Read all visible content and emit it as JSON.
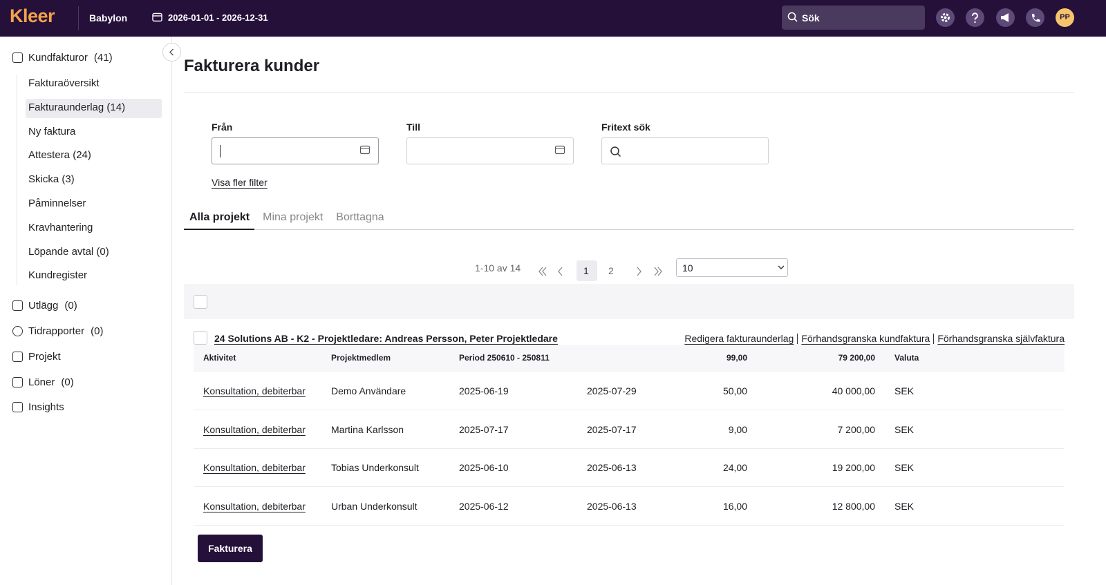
{
  "topbar": {
    "logo": "Kleer",
    "company": "Babylon",
    "period": "2026-01-01 - 2026-12-31",
    "search": "Sök",
    "avatar": "PP"
  },
  "sidebar": {
    "main": [
      {
        "label": "Kundfakturor",
        "count": "(41)"
      },
      {
        "label": "Utlägg",
        "count": "(0)"
      },
      {
        "label": "Tidrapporter",
        "count": "(0)"
      },
      {
        "label": "Projekt"
      },
      {
        "label": "Löner",
        "count": "(0)"
      },
      {
        "label": "Insights"
      }
    ],
    "submenu": [
      "Fakturaöversikt",
      "Fakturaunderlag (14)",
      "Ny faktura",
      "Attestera (24)",
      "Skicka (3)",
      "Påminnelser",
      "Kravhantering",
      "Löpande avtal (0)",
      "Kundregister"
    ]
  },
  "page": {
    "title": "Fakturera kunder",
    "filters": [
      "Från",
      "Till",
      "Fritext sök"
    ],
    "more_filters": "Visa fler filter",
    "tabs": [
      "Alla projekt",
      "Mina projekt",
      "Borttagna"
    ],
    "pagination": {
      "summary": "1-10 av 14",
      "pages": [
        "1",
        "2"
      ],
      "page_size": "10"
    },
    "group": {
      "title": "24 Solutions AB - K2 - Projektledare: Andreas Persson, Peter Projektledare",
      "actions": [
        "Redigera fakturaunderlag",
        "Förhandsgranska kundfaktura",
        "Förhandsgranska självfaktura"
      ],
      "columns": [
        "Aktivitet",
        "Projektmedlem",
        "Period 250610 - 250811",
        "99,00",
        "79 200,00",
        "Valuta"
      ],
      "rows": [
        [
          "Konsultation, debiterbar",
          "Demo Användare",
          "2025-06-19",
          "2025-07-29",
          "50,00",
          "40 000,00",
          "SEK"
        ],
        [
          "Konsultation, debiterbar",
          "Martina Karlsson",
          "2025-07-17",
          "2025-07-17",
          "9,00",
          "7 200,00",
          "SEK"
        ],
        [
          "Konsultation, debiterbar",
          "Tobias Underkonsult",
          "2025-06-10",
          "2025-06-13",
          "24,00",
          "19 200,00",
          "SEK"
        ],
        [
          "Konsultation, debiterbar",
          "Urban Underkonsult",
          "2025-06-12",
          "2025-06-13",
          "16,00",
          "12 800,00",
          "SEK"
        ]
      ]
    },
    "submit": "Fakturera"
  }
}
